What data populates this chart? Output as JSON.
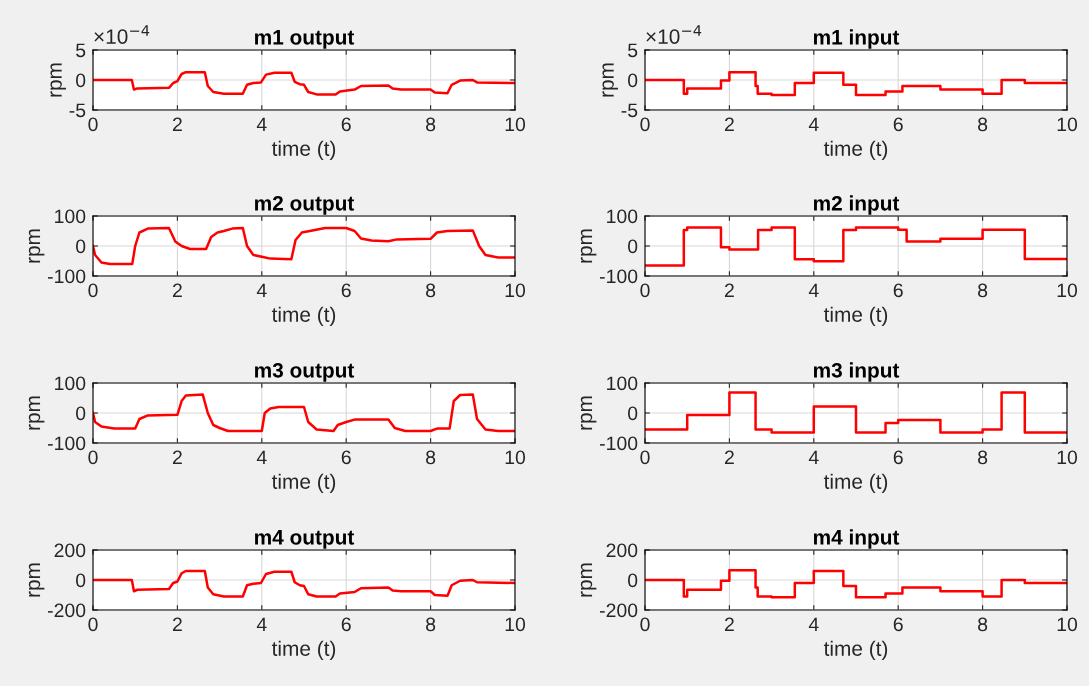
{
  "chart_data": [
    {
      "type": "line",
      "title": "m1 output",
      "xlabel": "time (t)",
      "ylabel": "rpm",
      "annotations": [
        "×10$^{−4}$"
      ],
      "xlim": [
        0,
        10
      ],
      "xticks": [
        0,
        2,
        4,
        6,
        8,
        10
      ],
      "ylim": [
        -5,
        5
      ],
      "yticks": [
        -5,
        0,
        5
      ],
      "grid": true,
      "series": [
        {
          "color": "#ff0000",
          "x": [
            0,
            0.92,
            0.97,
            1.05,
            1.8,
            1.9,
            2.0,
            2.1,
            2.2,
            2.65,
            2.72,
            2.85,
            3.1,
            3.55,
            3.65,
            3.8,
            3.98,
            4.1,
            4.3,
            4.7,
            4.78,
            4.9,
            5.0,
            5.1,
            5.3,
            5.75,
            5.85,
            6.2,
            6.35,
            7.0,
            7.1,
            7.3,
            8.0,
            8.1,
            8.4,
            8.5,
            8.7,
            9.0,
            9.1,
            10
          ],
          "values": [
            0,
            0,
            -1.6,
            -1.4,
            -1.3,
            -0.5,
            -0.2,
            1.0,
            1.3,
            1.3,
            -1.0,
            -2.0,
            -2.3,
            -2.3,
            -0.8,
            -0.5,
            -0.4,
            0.9,
            1.2,
            1.2,
            -0.3,
            -0.7,
            -0.8,
            -2.0,
            -2.4,
            -2.4,
            -1.9,
            -1.6,
            -1.0,
            -0.9,
            -1.4,
            -1.6,
            -1.6,
            -2.1,
            -2.2,
            -0.8,
            -0.1,
            0,
            -0.4,
            -0.5
          ]
        }
      ]
    },
    {
      "type": "step",
      "title": "m1 input",
      "xlabel": "time (t)",
      "ylabel": "rpm",
      "annotations": [
        "×10$^{−4}$"
      ],
      "xlim": [
        0,
        10
      ],
      "xticks": [
        0,
        2,
        4,
        6,
        8,
        10
      ],
      "ylim": [
        -5,
        5
      ],
      "yticks": [
        -5,
        0,
        5
      ],
      "grid": true,
      "series": [
        {
          "color": "#ff0000",
          "x": [
            0,
            0.92,
            1.0,
            1.8,
            2.0,
            2.62,
            2.67,
            3.0,
            3.55,
            4.0,
            4.7,
            5.0,
            5.7,
            6.1,
            7.0,
            8.0,
            8.45,
            9.0,
            10
          ],
          "values": [
            0,
            -2.3,
            -1.4,
            -0.1,
            1.3,
            -1.0,
            -2.3,
            -2.5,
            -0.5,
            1.2,
            -0.8,
            -2.5,
            -1.9,
            -1.0,
            -1.6,
            -2.3,
            0,
            -0.5,
            -0.5
          ]
        }
      ]
    },
    {
      "type": "line",
      "title": "m2 output",
      "xlabel": "time (t)",
      "ylabel": "rpm",
      "xlim": [
        0,
        10
      ],
      "xticks": [
        0,
        2,
        4,
        6,
        8,
        10
      ],
      "ylim": [
        -100,
        100
      ],
      "yticks": [
        -100,
        0,
        100
      ],
      "grid": true,
      "series": [
        {
          "color": "#ff0000",
          "x": [
            0,
            0.05,
            0.2,
            0.4,
            0.93,
            1.0,
            1.1,
            1.3,
            1.8,
            1.95,
            2.1,
            2.3,
            2.68,
            2.8,
            2.95,
            3.1,
            3.3,
            3.55,
            3.65,
            3.8,
            4.0,
            4.2,
            4.7,
            4.8,
            4.95,
            5.2,
            5.5,
            6.0,
            6.1,
            6.2,
            6.35,
            6.6,
            7.0,
            7.2,
            8.0,
            8.15,
            8.4,
            9.0,
            9.15,
            9.3,
            9.6,
            10
          ],
          "values": [
            0,
            -30,
            -55,
            -60,
            -60,
            0,
            45,
            58,
            60,
            15,
            0,
            -10,
            -10,
            30,
            45,
            50,
            58,
            60,
            0,
            -30,
            -36,
            -42,
            -44,
            20,
            45,
            52,
            60,
            60,
            55,
            50,
            25,
            18,
            16,
            22,
            24,
            45,
            50,
            52,
            0,
            -30,
            -38,
            -38
          ]
        }
      ]
    },
    {
      "type": "step",
      "title": "m2 input",
      "xlabel": "time (t)",
      "ylabel": "rpm",
      "xlim": [
        0,
        10
      ],
      "xticks": [
        0,
        2,
        4,
        6,
        8,
        10
      ],
      "ylim": [
        -100,
        100
      ],
      "yticks": [
        -100,
        0,
        100
      ],
      "grid": true,
      "series": [
        {
          "color": "#ff0000",
          "x": [
            0,
            0.92,
            1.0,
            1.8,
            2.0,
            2.68,
            3.0,
            3.55,
            4.0,
            4.7,
            5.0,
            6.0,
            6.2,
            7.0,
            8.0,
            9.0,
            10
          ],
          "values": [
            -65,
            53,
            62,
            -4,
            -12,
            53,
            62,
            -44,
            -51,
            53,
            62,
            54,
            15,
            24,
            54,
            -43,
            -43
          ]
        }
      ]
    },
    {
      "type": "line",
      "title": "m3 output",
      "xlabel": "time (t)",
      "ylabel": "rpm",
      "xlim": [
        0,
        10
      ],
      "xticks": [
        0,
        2,
        4,
        6,
        8,
        10
      ],
      "ylim": [
        -100,
        100
      ],
      "yticks": [
        -100,
        0,
        100
      ],
      "grid": true,
      "series": [
        {
          "color": "#ff0000",
          "x": [
            0,
            0.05,
            0.2,
            0.5,
            1.0,
            1.1,
            1.3,
            2.0,
            2.1,
            2.2,
            2.6,
            2.72,
            2.85,
            3.0,
            3.2,
            4.0,
            4.07,
            4.2,
            4.4,
            5.0,
            5.1,
            5.3,
            5.7,
            5.8,
            6.0,
            6.2,
            7.0,
            7.15,
            7.4,
            8.0,
            8.15,
            8.45,
            8.55,
            8.7,
            9.0,
            9.1,
            9.3,
            9.6,
            10
          ],
          "values": [
            0,
            -30,
            -45,
            -52,
            -52,
            -20,
            -8,
            -6,
            40,
            58,
            62,
            0,
            -40,
            -50,
            -60,
            -60,
            0,
            15,
            20,
            20,
            -30,
            -55,
            -60,
            -40,
            -30,
            -22,
            -22,
            -50,
            -60,
            -60,
            -52,
            -52,
            40,
            60,
            62,
            -20,
            -55,
            -60,
            -60
          ]
        }
      ]
    },
    {
      "type": "step",
      "title": "m3 input",
      "xlabel": "time (t)",
      "ylabel": "rpm",
      "xlim": [
        0,
        10
      ],
      "xticks": [
        0,
        2,
        4,
        6,
        8,
        10
      ],
      "ylim": [
        -100,
        100
      ],
      "yticks": [
        -100,
        0,
        100
      ],
      "grid": true,
      "series": [
        {
          "color": "#ff0000",
          "x": [
            0,
            1.0,
            2.0,
            2.62,
            3.0,
            4.0,
            5.0,
            5.7,
            6.0,
            7.0,
            8.0,
            8.45,
            9.0,
            10
          ],
          "values": [
            -55,
            -7,
            68,
            -55,
            -65,
            22,
            -65,
            -33,
            -23,
            -65,
            -55,
            68,
            -65,
            -65
          ]
        }
      ]
    },
    {
      "type": "line",
      "title": "m4 output",
      "xlabel": "time (t)",
      "ylabel": "rpm",
      "xlim": [
        0,
        10
      ],
      "xticks": [
        0,
        2,
        4,
        6,
        8,
        10
      ],
      "ylim": [
        -200,
        200
      ],
      "yticks": [
        -200,
        0,
        200
      ],
      "grid": true,
      "series": [
        {
          "color": "#ff0000",
          "x": [
            0,
            0.92,
            0.97,
            1.05,
            1.8,
            1.9,
            2.0,
            2.1,
            2.2,
            2.65,
            2.72,
            2.85,
            3.1,
            3.55,
            3.65,
            3.8,
            3.98,
            4.1,
            4.3,
            4.7,
            4.78,
            4.9,
            5.0,
            5.1,
            5.3,
            5.75,
            5.85,
            6.2,
            6.35,
            7.0,
            7.1,
            7.3,
            8.0,
            8.1,
            8.4,
            8.5,
            8.7,
            9.0,
            9.1,
            10
          ],
          "values": [
            0,
            0,
            -75,
            -65,
            -60,
            -20,
            -10,
            45,
            60,
            60,
            -50,
            -95,
            -110,
            -110,
            -35,
            -25,
            -20,
            40,
            55,
            55,
            -15,
            -35,
            -40,
            -95,
            -110,
            -110,
            -90,
            -80,
            -55,
            -50,
            -70,
            -75,
            -75,
            -100,
            -105,
            -35,
            -5,
            0,
            -15,
            -20
          ]
        }
      ]
    },
    {
      "type": "step",
      "title": "m4 input",
      "xlabel": "time (t)",
      "ylabel": "rpm",
      "xlim": [
        0,
        10
      ],
      "xticks": [
        0,
        2,
        4,
        6,
        8,
        10
      ],
      "ylim": [
        -200,
        200
      ],
      "yticks": [
        -200,
        0,
        200
      ],
      "grid": true,
      "series": [
        {
          "color": "#ff0000",
          "x": [
            0,
            0.92,
            1.0,
            1.8,
            2.0,
            2.62,
            2.67,
            3.0,
            3.55,
            4.0,
            4.7,
            5.0,
            5.7,
            6.1,
            7.0,
            8.0,
            8.45,
            9.0,
            10
          ],
          "values": [
            0,
            -110,
            -65,
            -5,
            65,
            -50,
            -110,
            -115,
            -20,
            60,
            -40,
            -115,
            -90,
            -50,
            -75,
            -110,
            0,
            -20,
            -20
          ]
        }
      ]
    }
  ]
}
